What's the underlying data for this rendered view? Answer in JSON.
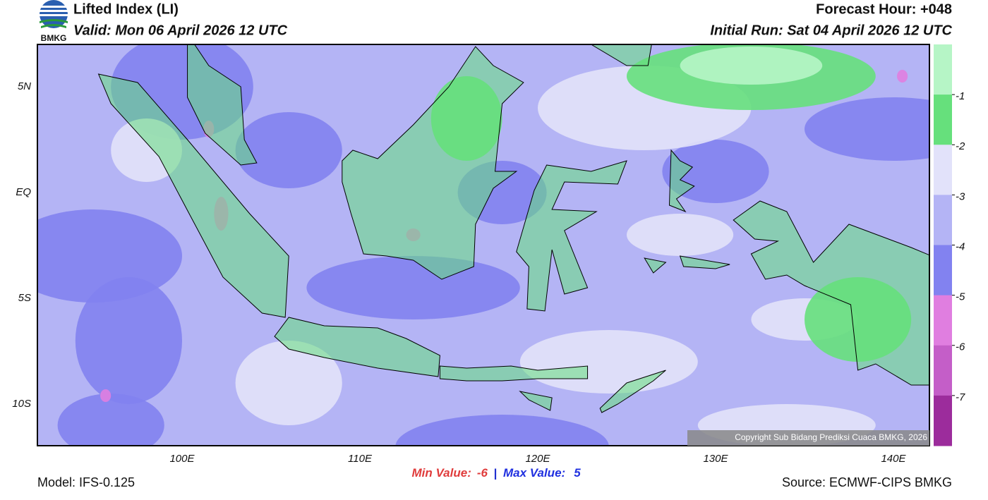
{
  "header": {
    "title": "Lifted Index (LI)",
    "valid": "Valid: Mon 06 April 2026 12 UTC",
    "forecast_hour": "Forecast Hour: +048",
    "initial_run": "Initial Run: Sat 04 April 2026 12 UTC",
    "logo": "BMKG"
  },
  "map": {
    "lat_labels": [
      "5N",
      "EQ",
      "5S",
      "10S"
    ],
    "lon_labels": [
      "100E",
      "110E",
      "120E",
      "130E",
      "140E"
    ],
    "copyright": "Copyright Sub Bidang Prediksi Cuaca BMKG, 2026"
  },
  "colorbar": {
    "ticks": [
      -1,
      -2,
      -3,
      -4,
      -5,
      -6,
      -7
    ],
    "colors": [
      "#b6f5c6",
      "#66e07c",
      "#e2e2fa",
      "#b4b4f5",
      "#8282f0",
      "#e07ee0",
      "#c45ec8",
      "#9c2c9c"
    ]
  },
  "footer": {
    "model": "Model: IFS-0.125",
    "min_label": "Min Value:",
    "min_value": -6,
    "separator": "|",
    "max_label": "Max Value:",
    "max_value": 5,
    "source": "Source: ECMWF-CIPS BMKG"
  }
}
